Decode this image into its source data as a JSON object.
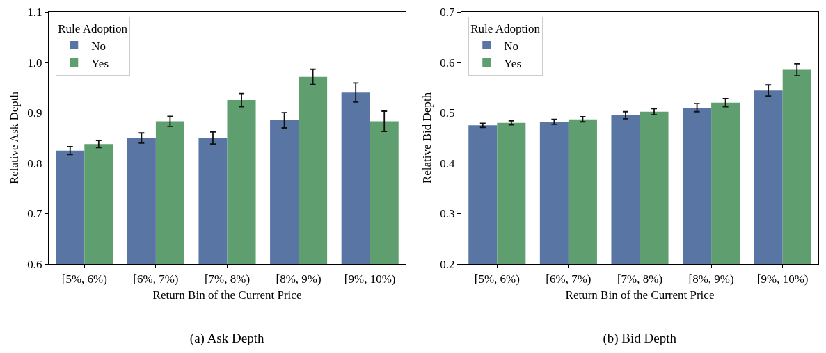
{
  "chart_data": [
    {
      "type": "bar",
      "title": "(a) Ask Depth",
      "xlabel": "Return Bin of the Current Price",
      "ylabel": "Relative Ask Depth",
      "legend_title": "Rule Adoption",
      "legend": "top left",
      "grid": false,
      "categories": [
        "[5%, 6%)",
        "[6%, 7%)",
        "[7%, 8%)",
        "[8%, 9%)",
        "[9%, 10%)"
      ],
      "ylim": [
        0.6,
        1.1
      ],
      "yticks": [
        0.6,
        0.7,
        0.8,
        0.9,
        {
          "value": 1,
          "label": "1.0"
        },
        1.1
      ],
      "series": [
        {
          "name": "No",
          "color": "#5975a4",
          "values": [
            0.825,
            0.85,
            0.85,
            0.885,
            0.94
          ],
          "errors": [
            0.008,
            0.01,
            0.012,
            0.015,
            0.019
          ]
        },
        {
          "name": "Yes",
          "color": "#5f9e6e",
          "values": [
            0.838,
            0.883,
            0.925,
            0.971,
            0.883
          ],
          "errors": [
            0.007,
            0.01,
            0.013,
            0.015,
            0.02
          ]
        }
      ]
    },
    {
      "type": "bar",
      "title": "(b) Bid Depth",
      "xlabel": "Return Bin of the Current Price",
      "ylabel": "Relative Bid Depth",
      "legend_title": "Rule Adoption",
      "legend": "top left",
      "grid": false,
      "categories": [
        "[5%, 6%)",
        "[6%, 7%)",
        "[7%, 8%)",
        "[8%, 9%)",
        "[9%, 10%)"
      ],
      "ylim": [
        0.2,
        0.7
      ],
      "yticks": [
        0.2,
        0.3,
        0.4,
        0.5,
        0.6,
        0.7
      ],
      "series": [
        {
          "name": "No",
          "color": "#5975a4",
          "values": [
            0.475,
            0.482,
            0.495,
            0.51,
            0.544
          ],
          "errors": [
            0.004,
            0.005,
            0.007,
            0.008,
            0.011
          ]
        },
        {
          "name": "Yes",
          "color": "#5f9e6e",
          "values": [
            0.48,
            0.487,
            0.502,
            0.52,
            0.585
          ],
          "errors": [
            0.004,
            0.005,
            0.006,
            0.008,
            0.012
          ]
        }
      ]
    }
  ]
}
